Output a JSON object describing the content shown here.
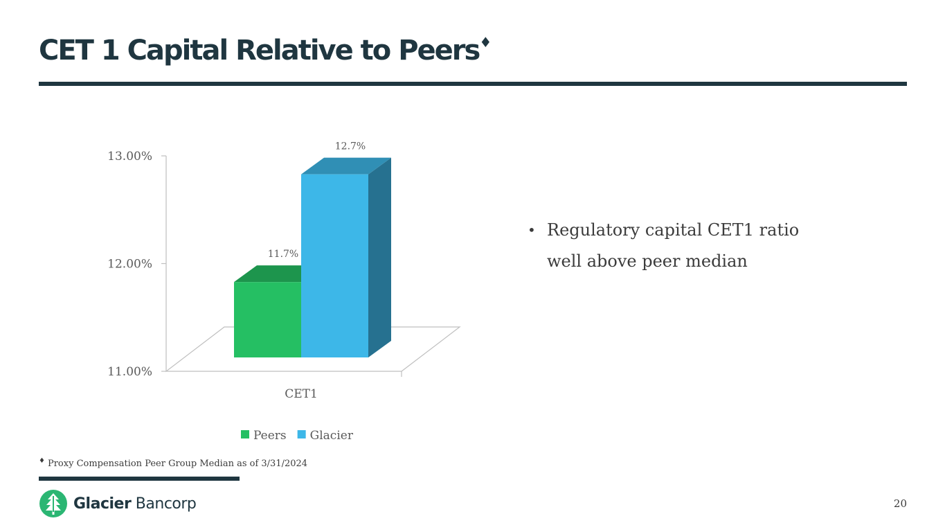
{
  "slide": {
    "title": "CET 1 Capital Relative to Peers",
    "title_mark": "♦",
    "bullet_marker": "•",
    "bullet_text": "Regulatory capital CET1 ratio well above peer median",
    "footnote_mark": "♦",
    "footnote_text": "Proxy Compensation Peer Group Median as of 3/31/2024",
    "logo_bold": "Glacier",
    "logo_light": "Bancorp",
    "logo_icon": "glacier-tree-logo-icon",
    "page_number": "20"
  },
  "chart_data": {
    "type": "bar",
    "categories": [
      "CET1"
    ],
    "series": [
      {
        "name": "Peers",
        "values": [
          11.7
        ],
        "data_label": "11.7%",
        "color": "#25bf63"
      },
      {
        "name": "Glacier",
        "values": [
          12.7
        ],
        "data_label": "12.7%",
        "color": "#3db7e8"
      }
    ],
    "yticks": [
      {
        "value": 13.0,
        "label": "13.00%"
      },
      {
        "value": 12.0,
        "label": "12.00%"
      },
      {
        "value": 11.0,
        "label": "11.00%"
      }
    ],
    "ylim": [
      11.0,
      13.0
    ],
    "legend": "bottom",
    "three_d": true,
    "grid": false
  }
}
